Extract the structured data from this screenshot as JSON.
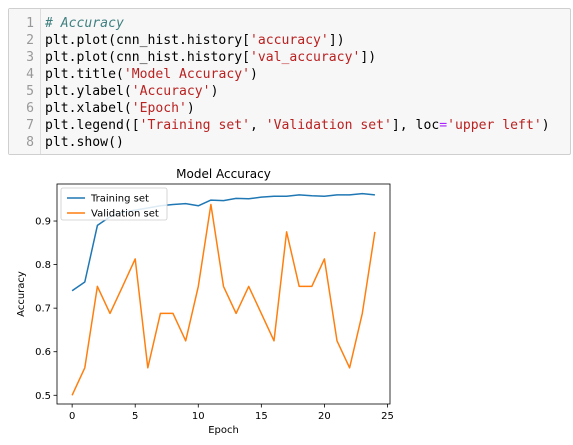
{
  "code_cell": {
    "lines": [
      {
        "n": "1",
        "parts": [
          {
            "t": "# Accuracy",
            "c": "cm"
          }
        ]
      },
      {
        "n": "2",
        "parts": [
          {
            "t": "plt.plot(cnn_hist.history[",
            "c": ""
          },
          {
            "t": "'accuracy'",
            "c": "st"
          },
          {
            "t": "])",
            "c": ""
          }
        ]
      },
      {
        "n": "3",
        "parts": [
          {
            "t": "plt.plot(cnn_hist.history[",
            "c": ""
          },
          {
            "t": "'val_accuracy'",
            "c": "st"
          },
          {
            "t": "])",
            "c": ""
          }
        ]
      },
      {
        "n": "4",
        "parts": [
          {
            "t": "plt.title(",
            "c": ""
          },
          {
            "t": "'Model Accuracy'",
            "c": "st"
          },
          {
            "t": ")",
            "c": ""
          }
        ]
      },
      {
        "n": "5",
        "parts": [
          {
            "t": "plt.ylabel(",
            "c": ""
          },
          {
            "t": "'Accuracy'",
            "c": "st"
          },
          {
            "t": ")",
            "c": ""
          }
        ]
      },
      {
        "n": "6",
        "parts": [
          {
            "t": "plt.xlabel(",
            "c": ""
          },
          {
            "t": "'Epoch'",
            "c": "st"
          },
          {
            "t": ")",
            "c": ""
          }
        ]
      },
      {
        "n": "7",
        "parts": [
          {
            "t": "plt.legend([",
            "c": ""
          },
          {
            "t": "'Training set'",
            "c": "st"
          },
          {
            "t": ", ",
            "c": ""
          },
          {
            "t": "'Validation set'",
            "c": "st"
          },
          {
            "t": "], loc",
            "c": ""
          },
          {
            "t": "=",
            "c": "op"
          },
          {
            "t": "'upper left'",
            "c": "st"
          },
          {
            "t": ")",
            "c": ""
          }
        ]
      },
      {
        "n": "8",
        "parts": [
          {
            "t": "plt.show()",
            "c": ""
          }
        ]
      }
    ]
  },
  "chart_data": {
    "type": "line",
    "title": "Model Accuracy",
    "xlabel": "Epoch",
    "ylabel": "Accuracy",
    "xlim": [
      -1.2,
      25.2
    ],
    "ylim": [
      0.48,
      0.985
    ],
    "xticks": [
      0,
      5,
      10,
      15,
      20,
      25
    ],
    "yticks": [
      0.5,
      0.6,
      0.7,
      0.8,
      0.9
    ],
    "ytick_labels": [
      "0.5",
      "0.6",
      "0.7",
      "0.8",
      "0.9"
    ],
    "grid": false,
    "legend_position": "upper left",
    "x": [
      0,
      1,
      2,
      3,
      4,
      5,
      6,
      7,
      8,
      9,
      10,
      11,
      12,
      13,
      14,
      15,
      16,
      17,
      18,
      19,
      20,
      21,
      22,
      23,
      24
    ],
    "series": [
      {
        "name": "Training set",
        "color": "#1f77b4",
        "values": [
          0.74,
          0.76,
          0.89,
          0.91,
          0.92,
          0.925,
          0.93,
          0.935,
          0.938,
          0.94,
          0.935,
          0.948,
          0.947,
          0.952,
          0.951,
          0.955,
          0.957,
          0.957,
          0.96,
          0.958,
          0.957,
          0.96,
          0.96,
          0.963,
          0.96
        ]
      },
      {
        "name": "Validation set",
        "color": "#ff7f0e",
        "values": [
          0.5,
          0.563,
          0.75,
          0.688,
          0.75,
          0.813,
          0.563,
          0.688,
          0.688,
          0.625,
          0.75,
          0.938,
          0.75,
          0.688,
          0.75,
          0.688,
          0.625,
          0.875,
          0.75,
          0.75,
          0.813,
          0.625,
          0.563,
          0.688,
          0.875
        ]
      }
    ]
  }
}
